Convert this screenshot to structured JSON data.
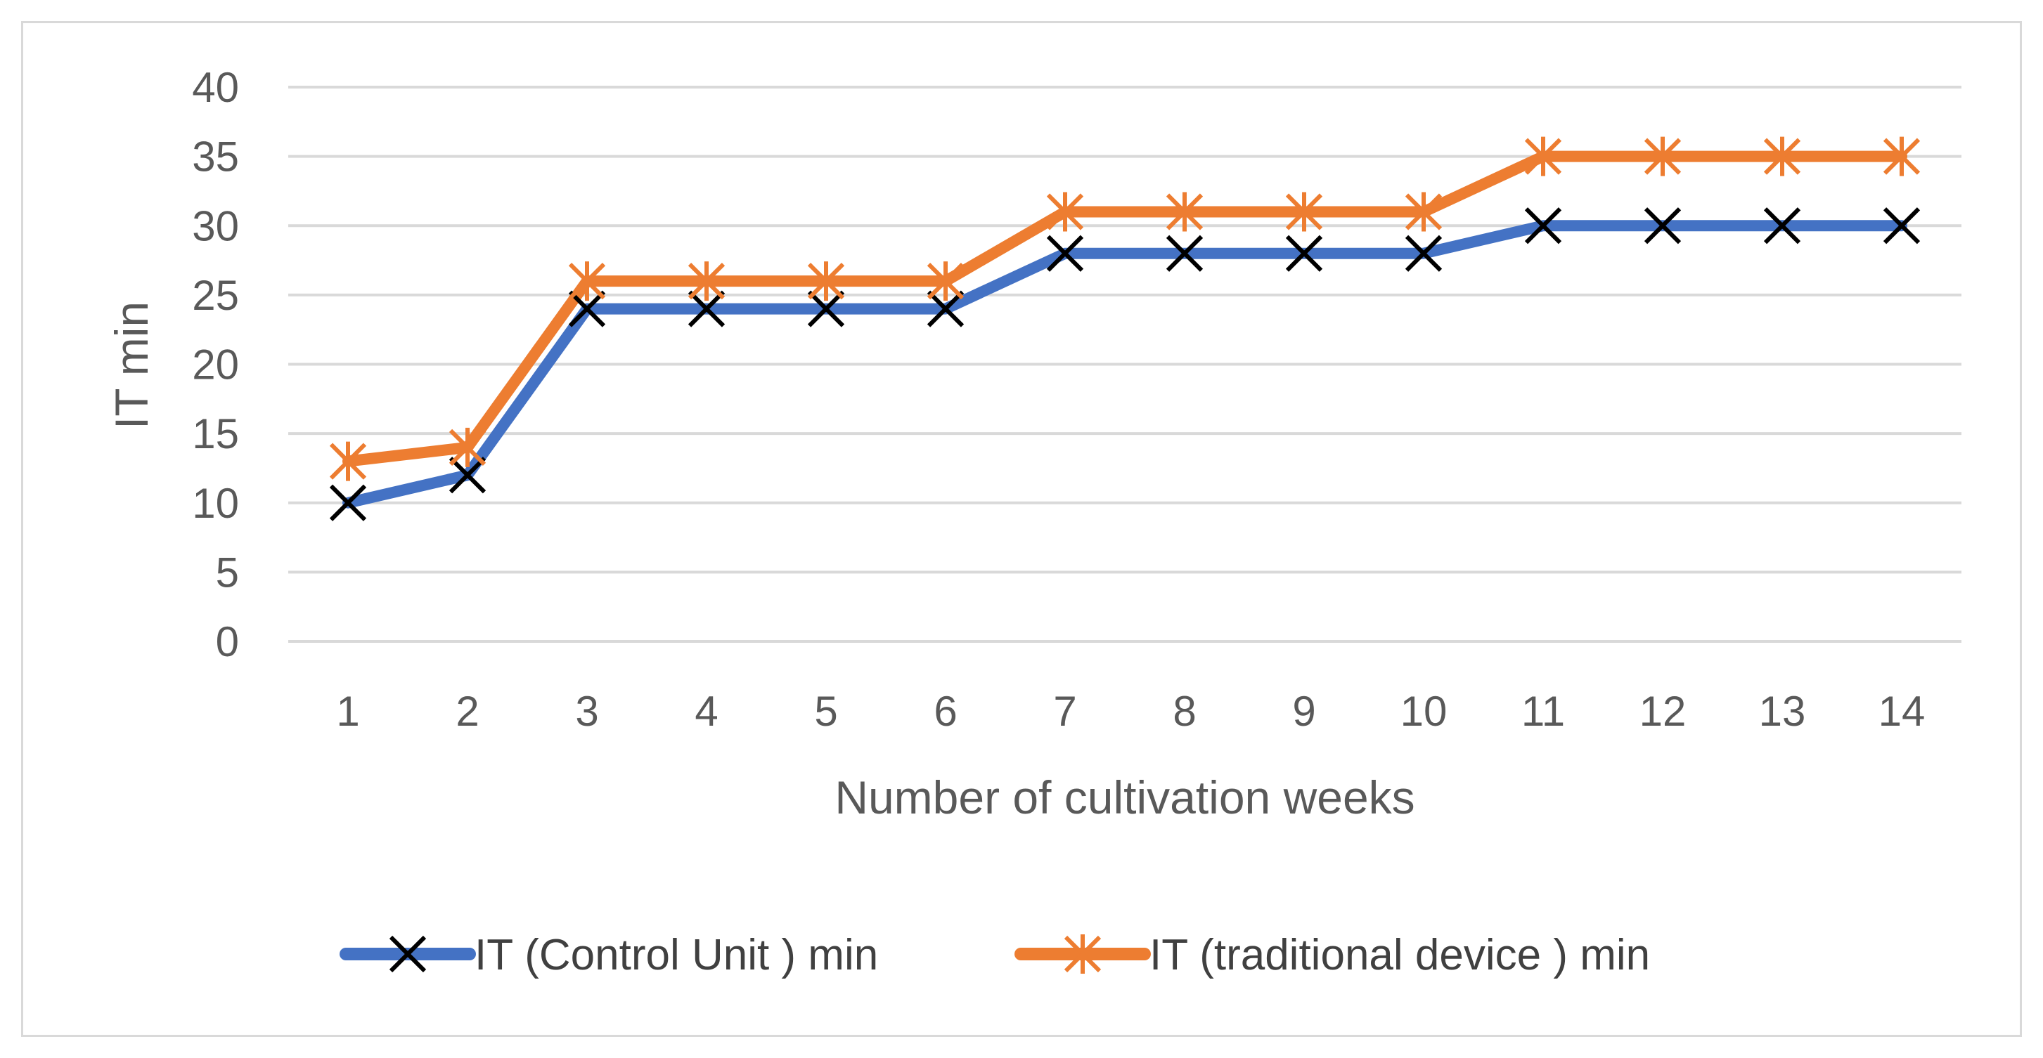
{
  "colors": {
    "control": "#4472c4",
    "traditional": "#ed7d31",
    "control_marker": "#000000",
    "traditional_marker": "#ed7d31",
    "gridline": "#d9d9d9",
    "text": "#595959"
  },
  "chart_data": {
    "type": "line",
    "title": "",
    "xlabel": "Number of cultivation weeks",
    "ylabel": "IT min",
    "categories": [
      "1",
      "2",
      "3",
      "4",
      "5",
      "6",
      "7",
      "8",
      "9",
      "10",
      "11",
      "12",
      "13",
      "14"
    ],
    "ylim": [
      0,
      40
    ],
    "yticks": [
      0,
      5,
      10,
      15,
      20,
      25,
      30,
      35,
      40
    ],
    "grid": true,
    "legend_position": "bottom",
    "series": [
      {
        "name": "IT (Control Unit ) min",
        "marker": "x",
        "values": [
          10,
          12,
          24,
          24,
          24,
          24,
          28,
          28,
          28,
          28,
          30,
          30,
          30,
          30
        ]
      },
      {
        "name": "IT (traditional device ) min",
        "marker": "star",
        "values": [
          13,
          14,
          26,
          26,
          26,
          26,
          31,
          31,
          31,
          31,
          35,
          35,
          35,
          35
        ]
      }
    ]
  }
}
